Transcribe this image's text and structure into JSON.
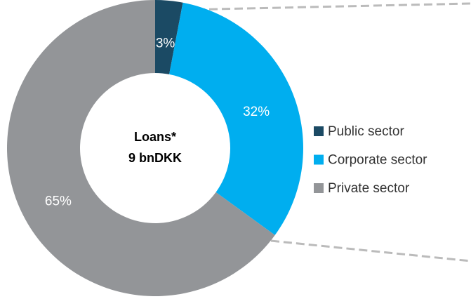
{
  "chart_data": {
    "type": "donut",
    "categories": [
      "Public sector",
      "Corporate sector",
      "Private sector"
    ],
    "values": [
      3,
      32,
      65
    ],
    "value_labels": [
      "3%",
      "32%",
      "65%"
    ],
    "colors": [
      "#1b4a64",
      "#00aeef",
      "#939598"
    ],
    "center_text": [
      "Loans*",
      "9 bnDKK"
    ],
    "legend": "right"
  }
}
